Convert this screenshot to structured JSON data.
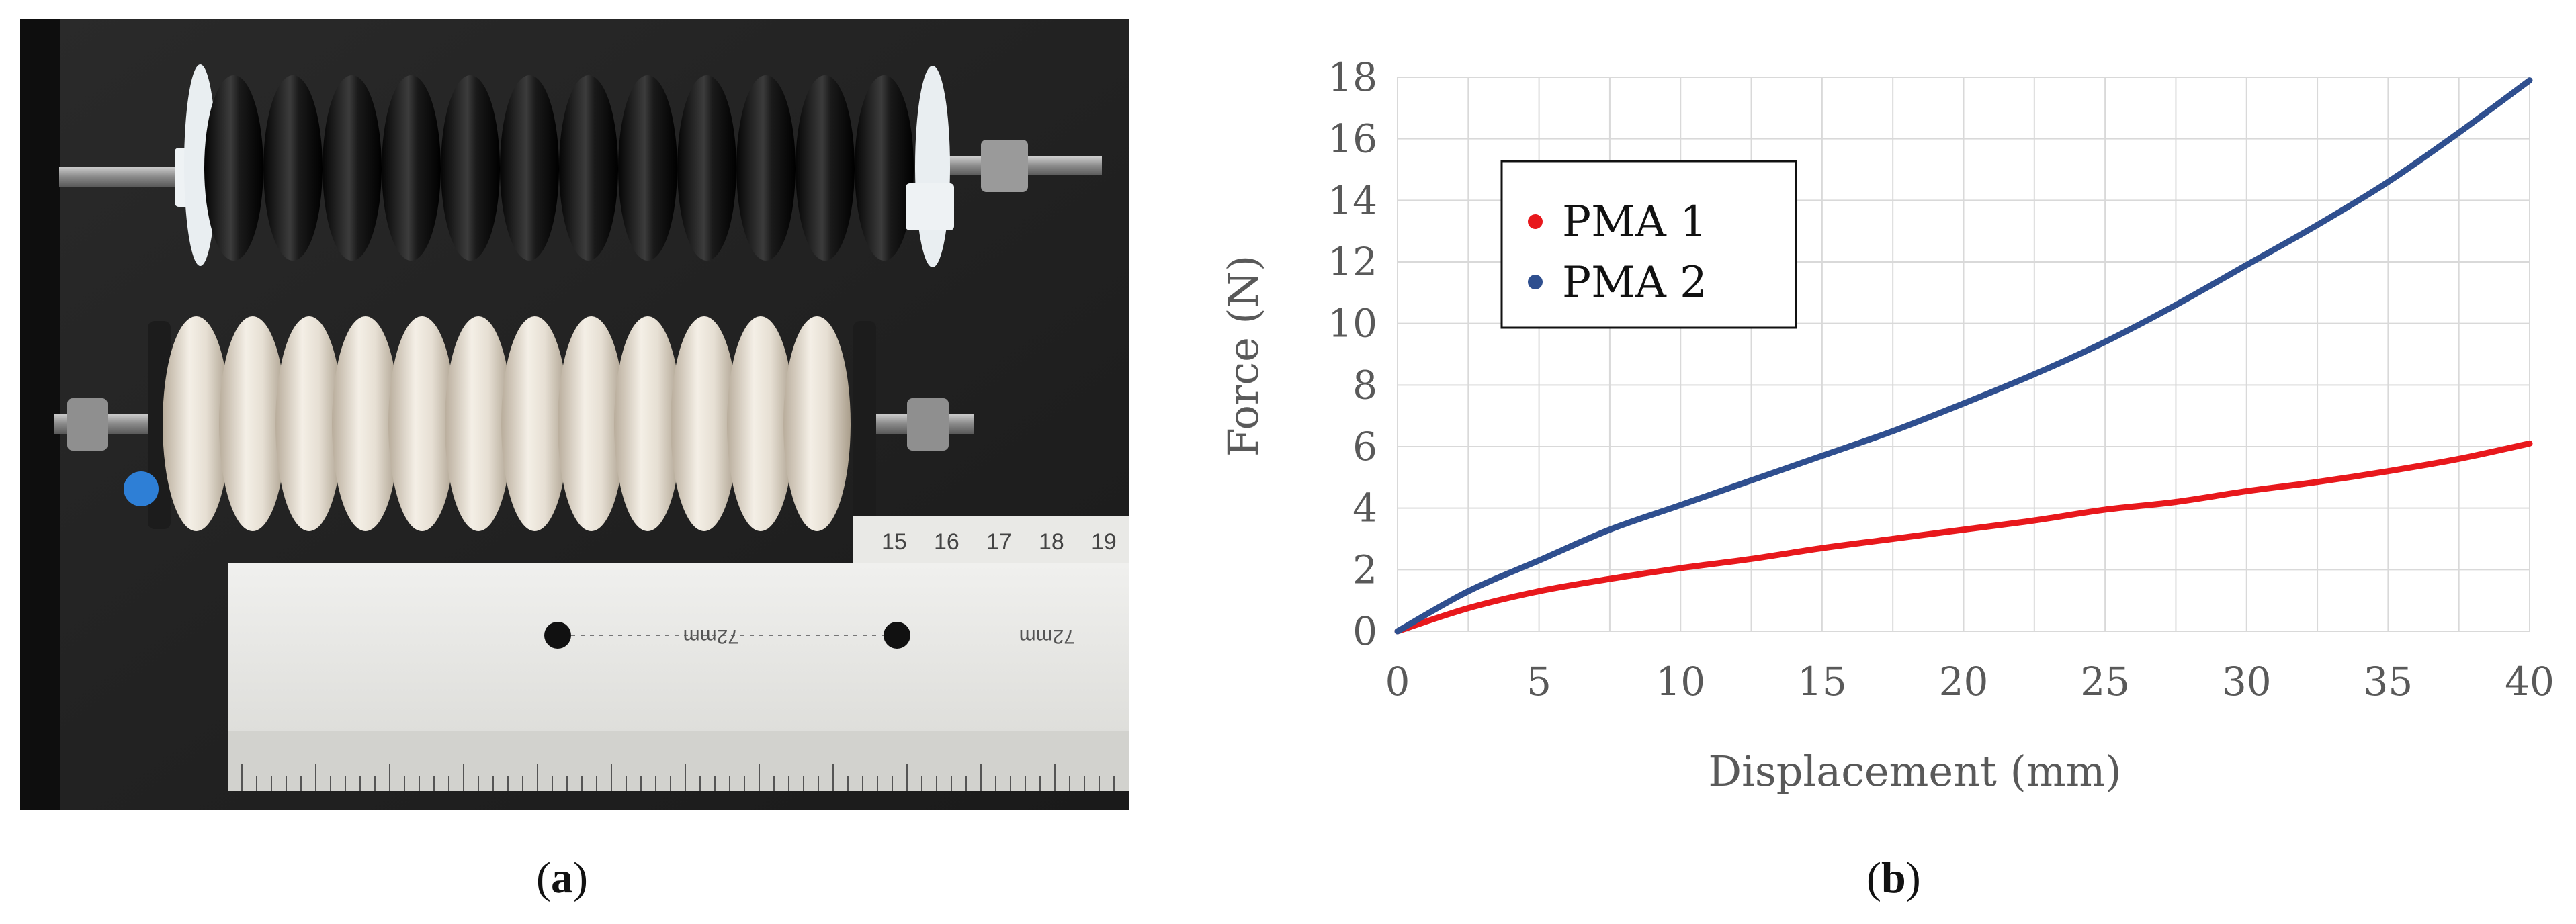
{
  "panels": {
    "a": {
      "caption_open": "(",
      "caption_letter": "a",
      "caption_close": ")"
    },
    "b": {
      "caption_open": "(",
      "caption_letter": "b",
      "caption_close": ")"
    }
  },
  "photo": {
    "ruler_numbers_top": [
      "15",
      "16",
      "17",
      "18",
      "19"
    ],
    "ruler_text_1": "72mm",
    "ruler_text_2": "72mm"
  },
  "colors": {
    "pma1": "#e8181c",
    "pma2": "#2f4f8f",
    "grid": "#d9d9d9",
    "text": "#595959"
  },
  "chart_data": {
    "type": "line",
    "title": "",
    "xlabel": "Displacement (mm)",
    "ylabel": "Force (N)",
    "xlim": [
      0,
      40
    ],
    "ylim": [
      0,
      18
    ],
    "xticks": [
      0,
      5,
      10,
      15,
      20,
      25,
      30,
      35,
      40
    ],
    "yticks": [
      0,
      2,
      4,
      6,
      8,
      10,
      12,
      14,
      16,
      18
    ],
    "grid": true,
    "legend_position": "upper-left",
    "series": [
      {
        "name": "PMA 1",
        "color": "#e8181c",
        "x": [
          0,
          2.5,
          5,
          7.5,
          10,
          12.5,
          15,
          17.5,
          20,
          22.5,
          25,
          27.5,
          30,
          32.5,
          35,
          37.5,
          40
        ],
        "y": [
          0,
          0.75,
          1.3,
          1.7,
          2.05,
          2.35,
          2.7,
          3.0,
          3.3,
          3.6,
          3.95,
          4.2,
          4.55,
          4.85,
          5.2,
          5.6,
          6.1
        ]
      },
      {
        "name": "PMA 2",
        "color": "#2f4f8f",
        "x": [
          0,
          2.5,
          5,
          7.5,
          10,
          12.5,
          15,
          17.5,
          20,
          22.5,
          25,
          27.5,
          30,
          32.5,
          35,
          37.5,
          40
        ],
        "y": [
          0,
          1.3,
          2.3,
          3.3,
          4.1,
          4.9,
          5.7,
          6.5,
          7.4,
          8.35,
          9.4,
          10.6,
          11.9,
          13.2,
          14.6,
          16.2,
          17.9
        ]
      }
    ]
  }
}
